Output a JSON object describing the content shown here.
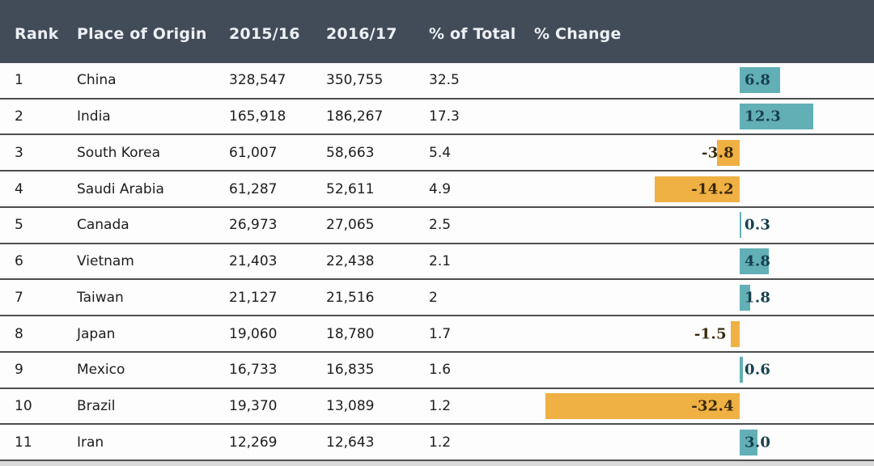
{
  "header": {
    "columns": [
      "Rank",
      "Place of Origin",
      "2015/16",
      "2016/17",
      "% of Total",
      "% Change"
    ]
  },
  "rows": [
    {
      "rank": "1",
      "place": "China",
      "y2015_16": "328,547",
      "y2016_17": "350,755",
      "pct_total": "32.5",
      "change": 6.8,
      "change_label": "6.8"
    },
    {
      "rank": "2",
      "place": "India",
      "y2015_16": "165,918",
      "y2016_17": "186,267",
      "pct_total": "17.3",
      "change": 12.3,
      "change_label": "12.3"
    },
    {
      "rank": "3",
      "place": "South Korea",
      "y2015_16": "61,007",
      "y2016_17": "58,663",
      "pct_total": "5.4",
      "change": -3.8,
      "change_label": "-3.8"
    },
    {
      "rank": "4",
      "place": "Saudi Arabia",
      "y2015_16": "61,287",
      "y2016_17": "52,611",
      "pct_total": "4.9",
      "change": -14.2,
      "change_label": "-14.2"
    },
    {
      "rank": "5",
      "place": "Canada",
      "y2015_16": "26,973",
      "y2016_17": "27,065",
      "pct_total": "2.5",
      "change": 0.3,
      "change_label": "0.3"
    },
    {
      "rank": "6",
      "place": "Vietnam",
      "y2015_16": "21,403",
      "y2016_17": "22,438",
      "pct_total": "2.1",
      "change": 4.8,
      "change_label": "4.8"
    },
    {
      "rank": "7",
      "place": "Taiwan",
      "y2015_16": "21,127",
      "y2016_17": "21,516",
      "pct_total": "2",
      "change": 1.8,
      "change_label": "1.8"
    },
    {
      "rank": "8",
      "place": "Japan",
      "y2015_16": "19,060",
      "y2016_17": "18,780",
      "pct_total": "1.7",
      "change": -1.5,
      "change_label": "-1.5"
    },
    {
      "rank": "9",
      "place": "Mexico",
      "y2015_16": "16,733",
      "y2016_17": "16,835",
      "pct_total": "1.6",
      "change": 0.6,
      "change_label": "0.6"
    },
    {
      "rank": "10",
      "place": "Brazil",
      "y2015_16": "19,370",
      "y2016_17": "13,089",
      "pct_total": "1.2",
      "change": -32.4,
      "change_label": "-32.4"
    },
    {
      "rank": "11",
      "place": "Iran",
      "y2015_16": "12,269",
      "y2016_17": "12,643",
      "pct_total": "1.2",
      "change": 3.0,
      "change_label": "3.0"
    }
  ],
  "style": {
    "header_bg": "#424c59",
    "header_text": "#eef1f4",
    "positive_bar_color": "#63afb6",
    "negative_bar_color": "#efb044",
    "positive_label_color": "#17404f",
    "negative_label_color": "#38290a",
    "row_divider_color": "#4e4e4e"
  },
  "chart_data": {
    "type": "table",
    "title": "",
    "columns": [
      "Rank",
      "Place of Origin",
      "2015/16",
      "2016/17",
      "% of Total",
      "% Change"
    ],
    "categories": [
      "China",
      "India",
      "South Korea",
      "Saudi Arabia",
      "Canada",
      "Vietnam",
      "Taiwan",
      "Japan",
      "Mexico",
      "Brazil",
      "Iran"
    ],
    "series": [
      {
        "name": "2015/16",
        "values": [
          328547,
          165918,
          61007,
          61287,
          26973,
          21403,
          21127,
          19060,
          16733,
          19370,
          12269
        ]
      },
      {
        "name": "2016/17",
        "values": [
          350755,
          186267,
          58663,
          52611,
          27065,
          22438,
          21516,
          18780,
          16835,
          13089,
          12643
        ]
      },
      {
        "name": "% of Total",
        "values": [
          32.5,
          17.3,
          5.4,
          4.9,
          2.5,
          2.1,
          2,
          1.7,
          1.6,
          1.2,
          1.2
        ]
      },
      {
        "name": "% Change",
        "values": [
          6.8,
          12.3,
          -3.8,
          -14.2,
          0.3,
          4.8,
          1.8,
          -1.5,
          0.6,
          -32.4,
          3.0
        ]
      }
    ],
    "embedded_bar_chart": {
      "column": "% Change",
      "type": "bar",
      "orientation": "horizontal-diverging",
      "positive_color": "#63afb6",
      "negative_color": "#efb044",
      "xlim": [
        -35,
        22
      ]
    },
    "legend": "none",
    "grid": "row-dividers-only"
  }
}
